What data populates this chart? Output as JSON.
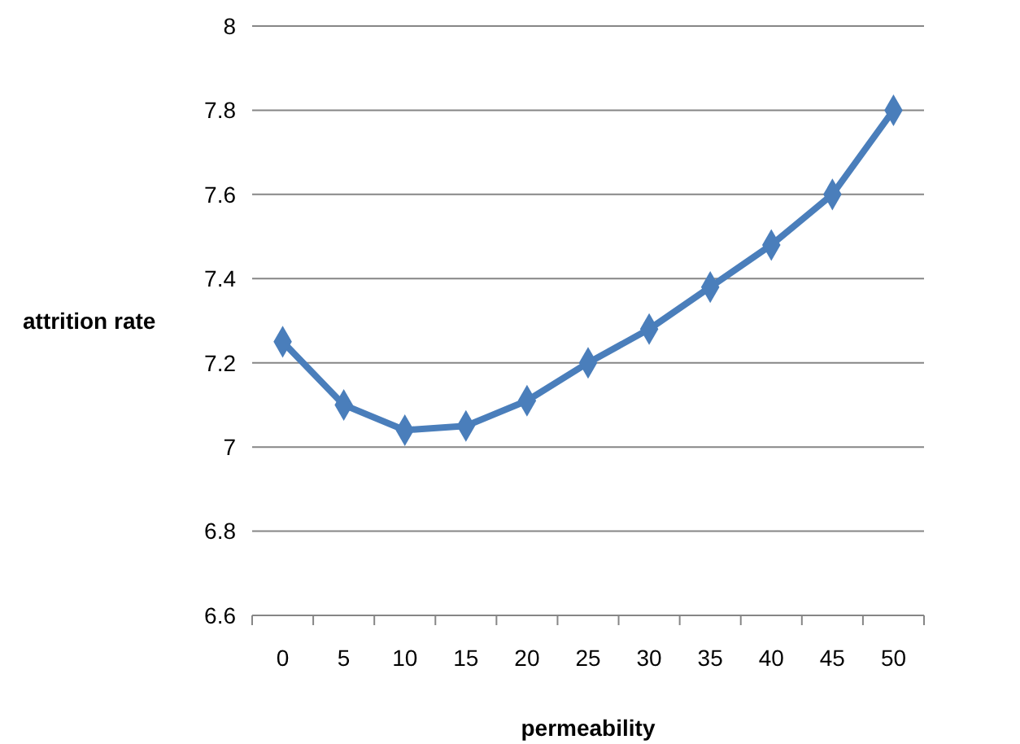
{
  "chart_data": {
    "type": "line",
    "xlabel": "permeability",
    "ylabel": "attrition rate",
    "categories": [
      "0",
      "5",
      "10",
      "15",
      "20",
      "25",
      "30",
      "35",
      "40",
      "45",
      "50"
    ],
    "series": [
      {
        "color": "#4a7ebb",
        "values": [
          7.25,
          7.1,
          7.04,
          7.05,
          7.11,
          7.2,
          7.28,
          7.38,
          7.48,
          7.6,
          7.8
        ]
      }
    ],
    "ylim": [
      6.6,
      8
    ],
    "yticks": [
      6.6,
      6.8,
      7,
      7.2,
      7.4,
      7.6,
      7.8,
      8
    ],
    "grid": "y",
    "marker": "diamond",
    "line_style": "solid"
  }
}
